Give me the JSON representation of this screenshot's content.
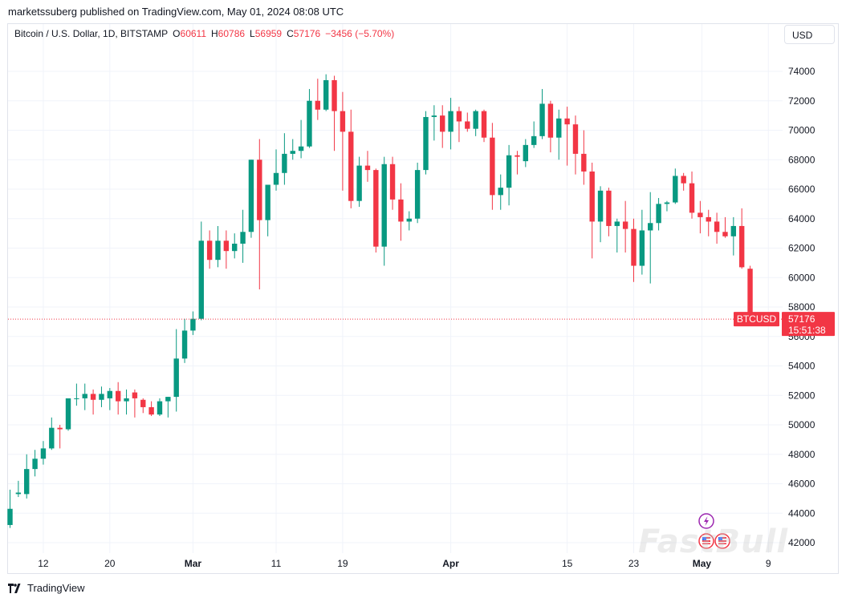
{
  "header": {
    "publisher_line": "marketssuberg published on TradingView.com, May 01, 2024 08:08 UTC"
  },
  "legend": {
    "symbol_desc": "Bitcoin / U.S. Dollar, 1D, BITSTAMP",
    "o_label": "O",
    "o_value": "60611",
    "h_label": "H",
    "h_value": "60786",
    "l_label": "L",
    "l_value": "56959",
    "c_label": "C",
    "c_value": "57176",
    "change": "−3456 (−5.70%)"
  },
  "toolbar": {
    "currency": "USD"
  },
  "price_badge": {
    "symbol": "BTCUSD",
    "price": "57176",
    "countdown": "15:51:38"
  },
  "footer": {
    "brand": "TradingView"
  },
  "watermark": "FastBull",
  "colors": {
    "up": "#089981",
    "down": "#f23645",
    "grid": "#f0f3fa",
    "axis_text": "#131722"
  },
  "chart_data": {
    "type": "candlestick",
    "yaxis": {
      "range": [
        41500,
        76500
      ],
      "ticks": [
        "74000",
        "72000",
        "70000",
        "68000",
        "66000",
        "64000",
        "62000",
        "60000",
        "58000",
        "56000",
        "54000",
        "52000",
        "50000",
        "48000",
        "46000",
        "44000",
        "42000"
      ]
    },
    "xaxis": {
      "ticks": [
        {
          "label": "12",
          "date": "2024-02-12"
        },
        {
          "label": "20",
          "date": "2024-02-20"
        },
        {
          "label": "Mar",
          "date": "2024-03-01"
        },
        {
          "label": "11",
          "date": "2024-03-11"
        },
        {
          "label": "19",
          "date": "2024-03-19"
        },
        {
          "label": "Apr",
          "date": "2024-04-01"
        },
        {
          "label": "15",
          "date": "2024-04-15"
        },
        {
          "label": "23",
          "date": "2024-04-23"
        },
        {
          "label": "May",
          "date": "2024-05-01"
        },
        {
          "label": "9",
          "date": "2024-05-09"
        }
      ]
    },
    "last_price": 57176,
    "candles": [
      {
        "date": "2024-02-08",
        "o": 43200,
        "h": 45600,
        "l": 43000,
        "c": 44300
      },
      {
        "date": "2024-02-09",
        "o": 45300,
        "h": 46200,
        "l": 45100,
        "c": 45400
      },
      {
        "date": "2024-02-10",
        "o": 45300,
        "h": 48000,
        "l": 45000,
        "c": 47000
      },
      {
        "date": "2024-02-11",
        "o": 47000,
        "h": 48300,
        "l": 46500,
        "c": 47700
      },
      {
        "date": "2024-02-12",
        "o": 47700,
        "h": 48900,
        "l": 47300,
        "c": 48400
      },
      {
        "date": "2024-02-13",
        "o": 48400,
        "h": 50500,
        "l": 48300,
        "c": 49800
      },
      {
        "date": "2024-02-14",
        "o": 49800,
        "h": 50000,
        "l": 48400,
        "c": 49700
      },
      {
        "date": "2024-02-15",
        "o": 49700,
        "h": 51700,
        "l": 49600,
        "c": 51800
      },
      {
        "date": "2024-02-16",
        "o": 51800,
        "h": 52800,
        "l": 51300,
        "c": 51800
      },
      {
        "date": "2024-02-17",
        "o": 51800,
        "h": 52800,
        "l": 51000,
        "c": 52100
      },
      {
        "date": "2024-02-18",
        "o": 52100,
        "h": 52400,
        "l": 50700,
        "c": 51700
      },
      {
        "date": "2024-02-19",
        "o": 51700,
        "h": 52600,
        "l": 51200,
        "c": 52100
      },
      {
        "date": "2024-02-20",
        "o": 51800,
        "h": 52500,
        "l": 51000,
        "c": 52300
      },
      {
        "date": "2024-02-21",
        "o": 52300,
        "h": 52900,
        "l": 50700,
        "c": 51600
      },
      {
        "date": "2024-02-22",
        "o": 51600,
        "h": 52400,
        "l": 50700,
        "c": 51800
      },
      {
        "date": "2024-02-23",
        "o": 52200,
        "h": 52400,
        "l": 50500,
        "c": 51800
      },
      {
        "date": "2024-02-24",
        "o": 51700,
        "h": 51800,
        "l": 50800,
        "c": 51200
      },
      {
        "date": "2024-02-25",
        "o": 51200,
        "h": 51600,
        "l": 50600,
        "c": 50700
      },
      {
        "date": "2024-02-26",
        "o": 50700,
        "h": 51800,
        "l": 50600,
        "c": 51600
      },
      {
        "date": "2024-02-27",
        "o": 51600,
        "h": 51900,
        "l": 50500,
        "c": 51900
      },
      {
        "date": "2024-02-28",
        "o": 51900,
        "h": 56500,
        "l": 50900,
        "c": 54500
      },
      {
        "date": "2024-02-29",
        "o": 54500,
        "h": 57200,
        "l": 54200,
        "c": 56400
      },
      {
        "date": "2024-03-01",
        "o": 56400,
        "h": 57700,
        "l": 56100,
        "c": 57200
      },
      {
        "date": "2024-03-02",
        "o": 57200,
        "h": 63800,
        "l": 57100,
        "c": 62500
      },
      {
        "date": "2024-03-03",
        "o": 62500,
        "h": 63200,
        "l": 60600,
        "c": 61200
      },
      {
        "date": "2024-03-04",
        "o": 61200,
        "h": 63500,
        "l": 60700,
        "c": 62500
      },
      {
        "date": "2024-03-05",
        "o": 62500,
        "h": 63200,
        "l": 60600,
        "c": 61800
      },
      {
        "date": "2024-03-06",
        "o": 61800,
        "h": 63000,
        "l": 61300,
        "c": 62300
      },
      {
        "date": "2024-03-07",
        "o": 62300,
        "h": 64600,
        "l": 61000,
        "c": 63100
      },
      {
        "date": "2024-03-08",
        "o": 63100,
        "h": 68000,
        "l": 62700,
        "c": 68000
      },
      {
        "date": "2024-03-09",
        "o": 68000,
        "h": 69400,
        "l": 59200,
        "c": 63900
      },
      {
        "date": "2024-03-10",
        "o": 63900,
        "h": 66200,
        "l": 62800,
        "c": 66300
      },
      {
        "date": "2024-03-11",
        "o": 66300,
        "h": 68700,
        "l": 65900,
        "c": 67100
      },
      {
        "date": "2024-03-12",
        "o": 67100,
        "h": 69800,
        "l": 66300,
        "c": 68400
      },
      {
        "date": "2024-03-13",
        "o": 68400,
        "h": 69400,
        "l": 68000,
        "c": 68600
      },
      {
        "date": "2024-03-14",
        "o": 68600,
        "h": 70700,
        "l": 68100,
        "c": 68900
      },
      {
        "date": "2024-03-15",
        "o": 68900,
        "h": 72800,
        "l": 68800,
        "c": 72000
      },
      {
        "date": "2024-03-16",
        "o": 72000,
        "h": 73500,
        "l": 70700,
        "c": 71400
      },
      {
        "date": "2024-03-17",
        "o": 71400,
        "h": 73800,
        "l": 71300,
        "c": 73400
      },
      {
        "date": "2024-03-18",
        "o": 73400,
        "h": 73700,
        "l": 68600,
        "c": 71300
      },
      {
        "date": "2024-03-19",
        "o": 71300,
        "h": 72600,
        "l": 65900,
        "c": 69900
      },
      {
        "date": "2024-03-20",
        "o": 69900,
        "h": 71400,
        "l": 64700,
        "c": 65200
      },
      {
        "date": "2024-03-21",
        "o": 65200,
        "h": 68200,
        "l": 64800,
        "c": 67600
      },
      {
        "date": "2024-03-22",
        "o": 67600,
        "h": 68600,
        "l": 66500,
        "c": 67300
      },
      {
        "date": "2024-03-23",
        "o": 67300,
        "h": 67400,
        "l": 61700,
        "c": 62100
      },
      {
        "date": "2024-03-24",
        "o": 62100,
        "h": 68200,
        "l": 60800,
        "c": 67700
      },
      {
        "date": "2024-03-25",
        "o": 67700,
        "h": 68200,
        "l": 64600,
        "c": 65300
      },
      {
        "date": "2024-03-26",
        "o": 65300,
        "h": 66400,
        "l": 62500,
        "c": 63800
      },
      {
        "date": "2024-03-27",
        "o": 63800,
        "h": 64500,
        "l": 63200,
        "c": 64000
      },
      {
        "date": "2024-03-28",
        "o": 64000,
        "h": 67800,
        "l": 63700,
        "c": 67300
      },
      {
        "date": "2024-03-29",
        "o": 67300,
        "h": 71300,
        "l": 67000,
        "c": 70900
      },
      {
        "date": "2024-03-30",
        "o": 70900,
        "h": 71700,
        "l": 69300,
        "c": 71000
      },
      {
        "date": "2024-03-31",
        "o": 71000,
        "h": 71700,
        "l": 68800,
        "c": 69900
      },
      {
        "date": "2024-04-01",
        "o": 69900,
        "h": 72200,
        "l": 68700,
        "c": 71300
      },
      {
        "date": "2024-04-02",
        "o": 71300,
        "h": 71600,
        "l": 69200,
        "c": 70600
      },
      {
        "date": "2024-04-03",
        "o": 70600,
        "h": 71200,
        "l": 69900,
        "c": 70100
      },
      {
        "date": "2024-04-04",
        "o": 70100,
        "h": 71400,
        "l": 69600,
        "c": 71300
      },
      {
        "date": "2024-04-05",
        "o": 71300,
        "h": 71400,
        "l": 69200,
        "c": 69500
      },
      {
        "date": "2024-04-06",
        "o": 69500,
        "h": 70500,
        "l": 64600,
        "c": 65600
      },
      {
        "date": "2024-04-07",
        "o": 65600,
        "h": 67000,
        "l": 64600,
        "c": 66100
      },
      {
        "date": "2024-04-08",
        "o": 66100,
        "h": 69000,
        "l": 64900,
        "c": 68300
      },
      {
        "date": "2024-04-09",
        "o": 68300,
        "h": 68600,
        "l": 67000,
        "c": 68200
      },
      {
        "date": "2024-04-10",
        "o": 67900,
        "h": 69400,
        "l": 67500,
        "c": 69000
      },
      {
        "date": "2024-04-11",
        "o": 69000,
        "h": 70600,
        "l": 68800,
        "c": 69600
      },
      {
        "date": "2024-04-12",
        "o": 69600,
        "h": 72800,
        "l": 69400,
        "c": 71800
      },
      {
        "date": "2024-04-13",
        "o": 71800,
        "h": 72000,
        "l": 68500,
        "c": 69500
      },
      {
        "date": "2024-04-14",
        "o": 69500,
        "h": 71400,
        "l": 68000,
        "c": 70800
      },
      {
        "date": "2024-04-15",
        "o": 70800,
        "h": 71600,
        "l": 67600,
        "c": 70400
      },
      {
        "date": "2024-04-16",
        "o": 70400,
        "h": 71000,
        "l": 67000,
        "c": 68400
      },
      {
        "date": "2024-04-17",
        "o": 68400,
        "h": 70000,
        "l": 66300,
        "c": 67200
      },
      {
        "date": "2024-04-18",
        "o": 67200,
        "h": 67800,
        "l": 61300,
        "c": 63800
      },
      {
        "date": "2024-04-19",
        "o": 63800,
        "h": 66200,
        "l": 62400,
        "c": 65900
      },
      {
        "date": "2024-04-20",
        "o": 65900,
        "h": 66100,
        "l": 62800,
        "c": 63500
      },
      {
        "date": "2024-04-21",
        "o": 63500,
        "h": 64000,
        "l": 61700,
        "c": 63800
      },
      {
        "date": "2024-04-22",
        "o": 63800,
        "h": 65200,
        "l": 61700,
        "c": 63300
      },
      {
        "date": "2024-04-23",
        "o": 63300,
        "h": 64000,
        "l": 59700,
        "c": 60800
      },
      {
        "date": "2024-04-24",
        "o": 60800,
        "h": 64600,
        "l": 60200,
        "c": 63200
      },
      {
        "date": "2024-04-25",
        "o": 63200,
        "h": 65800,
        "l": 59600,
        "c": 63700
      },
      {
        "date": "2024-04-26",
        "o": 63700,
        "h": 65400,
        "l": 63200,
        "c": 65000
      },
      {
        "date": "2024-04-27",
        "o": 65000,
        "h": 65200,
        "l": 64500,
        "c": 65100
      },
      {
        "date": "2024-04-28",
        "o": 65100,
        "h": 67400,
        "l": 65000,
        "c": 66900
      },
      {
        "date": "2024-04-29",
        "o": 66900,
        "h": 67100,
        "l": 65900,
        "c": 66400
      },
      {
        "date": "2024-04-30",
        "o": 66400,
        "h": 67200,
        "l": 64000,
        "c": 64400
      },
      {
        "date": "2024-05-01a",
        "o": 64400,
        "h": 65200,
        "l": 63000,
        "c": 64100
      },
      {
        "date": "2024-05-01b",
        "o": 64100,
        "h": 64600,
        "l": 62800,
        "c": 63800
      },
      {
        "date": "2024-05-01c",
        "o": 63800,
        "h": 64400,
        "l": 62300,
        "c": 63100
      },
      {
        "date": "2024-05-01d",
        "o": 63100,
        "h": 64100,
        "l": 62700,
        "c": 62800
      },
      {
        "date": "2024-05-01e",
        "o": 62800,
        "h": 64100,
        "l": 61500,
        "c": 63500
      },
      {
        "date": "2024-05-01f",
        "o": 63500,
        "h": 64700,
        "l": 60600,
        "c": 60700
      },
      {
        "date": "2024-05-01g",
        "o": 60600,
        "h": 60800,
        "l": 57000,
        "c": 57200
      }
    ]
  }
}
